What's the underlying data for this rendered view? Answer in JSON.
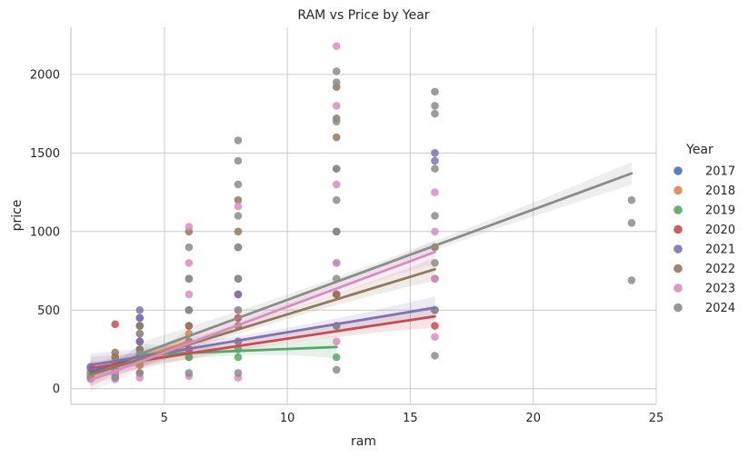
{
  "chart_data": {
    "type": "scatter",
    "title": "RAM vs Price by Year",
    "xlabel": "ram",
    "ylabel": "price",
    "xlim": [
      1.2,
      25
    ],
    "ylim": [
      -100,
      2300
    ],
    "xticks": [
      5,
      10,
      15,
      20,
      25
    ],
    "yticks": [
      0,
      500,
      1000,
      1500,
      2000
    ],
    "grid": true,
    "legend": {
      "title": "Year",
      "placement": "right"
    },
    "regression_bands": true,
    "series": [
      {
        "name": "2017",
        "color": "#4c72b0",
        "points": [
          [
            2,
            80
          ],
          [
            2,
            100
          ],
          [
            2,
            130
          ],
          [
            3,
            90
          ],
          [
            3,
            120
          ],
          [
            4,
            150
          ],
          [
            4,
            200
          ],
          [
            4,
            300
          ],
          [
            4,
            400
          ],
          [
            4,
            450
          ]
        ],
        "fit": {
          "x0": 2,
          "x1": 4,
          "y0": 105,
          "y1": 210
        }
      },
      {
        "name": "2018",
        "color": "#dd8452",
        "points": [
          [
            2,
            90
          ],
          [
            3,
            110
          ],
          [
            3,
            200
          ],
          [
            4,
            150
          ],
          [
            4,
            250
          ],
          [
            4,
            350
          ],
          [
            6,
            200
          ],
          [
            6,
            350
          ],
          [
            6,
            500
          ]
        ],
        "fit": {
          "x0": 2,
          "x1": 6,
          "y0": 85,
          "y1": 300
        }
      },
      {
        "name": "2019",
        "color": "#55a868",
        "points": [
          [
            3,
            120
          ],
          [
            4,
            180
          ],
          [
            4,
            250
          ],
          [
            6,
            200
          ],
          [
            6,
            300
          ],
          [
            8,
            250
          ],
          [
            8,
            200
          ],
          [
            12,
            200
          ]
        ],
        "fit": {
          "x0": 4,
          "x1": 12,
          "y0": 215,
          "y1": 265
        }
      },
      {
        "name": "2020",
        "color": "#c44e52",
        "points": [
          [
            3,
            410
          ],
          [
            3,
            150
          ],
          [
            4,
            200
          ],
          [
            4,
            300
          ],
          [
            6,
            250
          ],
          [
            6,
            400
          ],
          [
            8,
            300
          ],
          [
            8,
            450
          ],
          [
            8,
            600
          ],
          [
            12,
            400
          ],
          [
            12,
            600
          ],
          [
            16,
            400
          ],
          [
            16,
            500
          ]
        ],
        "fit": {
          "x0": 2,
          "x1": 16,
          "y0": 130,
          "y1": 460
        }
      },
      {
        "name": "2021",
        "color": "#8172b3",
        "points": [
          [
            2,
            140
          ],
          [
            3,
            100
          ],
          [
            4,
            500
          ],
          [
            4,
            450
          ],
          [
            4,
            300
          ],
          [
            6,
            300
          ],
          [
            6,
            500
          ],
          [
            8,
            300
          ],
          [
            8,
            600
          ],
          [
            8,
            900
          ],
          [
            12,
            400
          ],
          [
            12,
            800
          ],
          [
            12,
            1000
          ],
          [
            16,
            500
          ],
          [
            16,
            1500
          ],
          [
            16,
            1450
          ]
        ],
        "fit": {
          "x0": 2,
          "x1": 16,
          "y0": 150,
          "y1": 515
        }
      },
      {
        "name": "2022",
        "color": "#937860",
        "points": [
          [
            3,
            230
          ],
          [
            3,
            200
          ],
          [
            4,
            100
          ],
          [
            4,
            250
          ],
          [
            4,
            400
          ],
          [
            6,
            400
          ],
          [
            6,
            700
          ],
          [
            6,
            1000
          ],
          [
            8,
            400
          ],
          [
            8,
            700
          ],
          [
            8,
            1000
          ],
          [
            8,
            1200
          ],
          [
            12,
            600
          ],
          [
            12,
            1000
          ],
          [
            12,
            1400
          ],
          [
            12,
            1600
          ],
          [
            12,
            1720
          ],
          [
            12,
            1920
          ],
          [
            16,
            500
          ],
          [
            16,
            700
          ],
          [
            16,
            900
          ]
        ],
        "fit": {
          "x0": 2,
          "x1": 16,
          "y0": 90,
          "y1": 760
        }
      },
      {
        "name": "2023",
        "color": "#da8bc3",
        "points": [
          [
            2,
            60
          ],
          [
            3,
            60
          ],
          [
            3,
            100
          ],
          [
            4,
            70
          ],
          [
            4,
            200
          ],
          [
            6,
            80
          ],
          [
            6,
            300
          ],
          [
            6,
            600
          ],
          [
            6,
            800
          ],
          [
            6,
            1030
          ],
          [
            8,
            70
          ],
          [
            8,
            500
          ],
          [
            8,
            900
          ],
          [
            8,
            1160
          ],
          [
            12,
            300
          ],
          [
            12,
            800
          ],
          [
            12,
            1300
          ],
          [
            12,
            1800
          ],
          [
            12,
            2180
          ],
          [
            16,
            330
          ],
          [
            16,
            700
          ],
          [
            16,
            1000
          ],
          [
            16,
            1250
          ]
        ],
        "fit": {
          "x0": 2,
          "x1": 16,
          "y0": 55,
          "y1": 870
        }
      },
      {
        "name": "2024",
        "color": "#8c8c8c",
        "points": [
          [
            2,
            70
          ],
          [
            3,
            70
          ],
          [
            3,
            150
          ],
          [
            4,
            100
          ],
          [
            4,
            220
          ],
          [
            4,
            350
          ],
          [
            6,
            100
          ],
          [
            6,
            300
          ],
          [
            6,
            500
          ],
          [
            6,
            700
          ],
          [
            6,
            900
          ],
          [
            8,
            100
          ],
          [
            8,
            300
          ],
          [
            8,
            500
          ],
          [
            8,
            700
          ],
          [
            8,
            900
          ],
          [
            8,
            1100
          ],
          [
            8,
            1300
          ],
          [
            8,
            1450
          ],
          [
            8,
            1580
          ],
          [
            12,
            120
          ],
          [
            12,
            400
          ],
          [
            12,
            700
          ],
          [
            12,
            1000
          ],
          [
            12,
            1200
          ],
          [
            12,
            1400
          ],
          [
            12,
            1700
          ],
          [
            12,
            1950
          ],
          [
            12,
            2020
          ],
          [
            16,
            210
          ],
          [
            16,
            500
          ],
          [
            16,
            800
          ],
          [
            16,
            1100
          ],
          [
            16,
            1400
          ],
          [
            16,
            1750
          ],
          [
            16,
            1800
          ],
          [
            16,
            1890
          ],
          [
            24,
            690
          ],
          [
            24,
            1055
          ],
          [
            24,
            1200
          ]
        ],
        "fit": {
          "x0": 4,
          "x1": 24,
          "y0": 220,
          "y1": 1370
        }
      }
    ]
  }
}
